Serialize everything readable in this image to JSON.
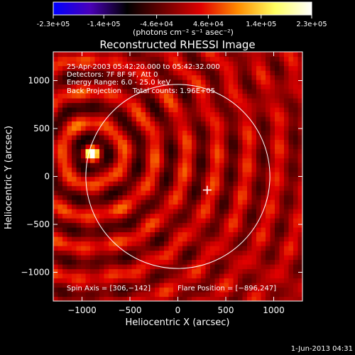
{
  "colorbar": {
    "tick_labels": [
      "-2.3e+05",
      "-1.4e+05",
      "-4.6e+04",
      "4.6e+04",
      "1.4e+05",
      "2.3e+05"
    ],
    "tick_values": [
      -230000,
      -140000,
      -46000,
      46000,
      140000,
      230000
    ],
    "range": [
      -230000,
      230000
    ],
    "unit_label": "(photons cm⁻² s⁻¹ asec⁻²)",
    "colormap": [
      "#0000ff",
      "#4a00b8",
      "#000000",
      "#6e0000",
      "#e00000",
      "#ff8c00",
      "#ffff60",
      "#ffffff"
    ]
  },
  "chart_data": {
    "type": "heatmap",
    "title": "Reconstructed RHESSI Image",
    "xlabel": "Heliocentric X (arcsec)",
    "ylabel": "Heliocentric Y (arcsec)",
    "xlim": [
      -1300,
      1300
    ],
    "ylim": [
      -1300,
      1300
    ],
    "x_ticks": [
      -1000,
      -500,
      0,
      500,
      1000
    ],
    "y_ticks": [
      -1000,
      -500,
      0,
      500,
      1000
    ],
    "x_tick_labels": [
      "−1000",
      "−500",
      "0",
      "500",
      "1000"
    ],
    "y_tick_labels": [
      "−1000",
      "−500",
      "0",
      "500",
      "1000"
    ],
    "solar_limb_radius_arcsec": 960,
    "annotations": [
      "25-Apr-2003 05:42:20.000 to 05:42:32.000",
      "Detectors: 7F 8F 9F, Att 0",
      "Energy Range: 6.0 - 25.0 keV",
      "Back Projection     Total counts: 1.96E+05"
    ],
    "spin_axis_label": "Spin Axis = [306,−142]",
    "flare_position_label": "Flare Position = [−896,247]",
    "spin_axis": [
      306,
      -142
    ],
    "flare_position": [
      -896,
      247
    ],
    "peak_intensity": 230000
  },
  "footer": {
    "timestamp": "1-Jun-2013 04:31"
  }
}
